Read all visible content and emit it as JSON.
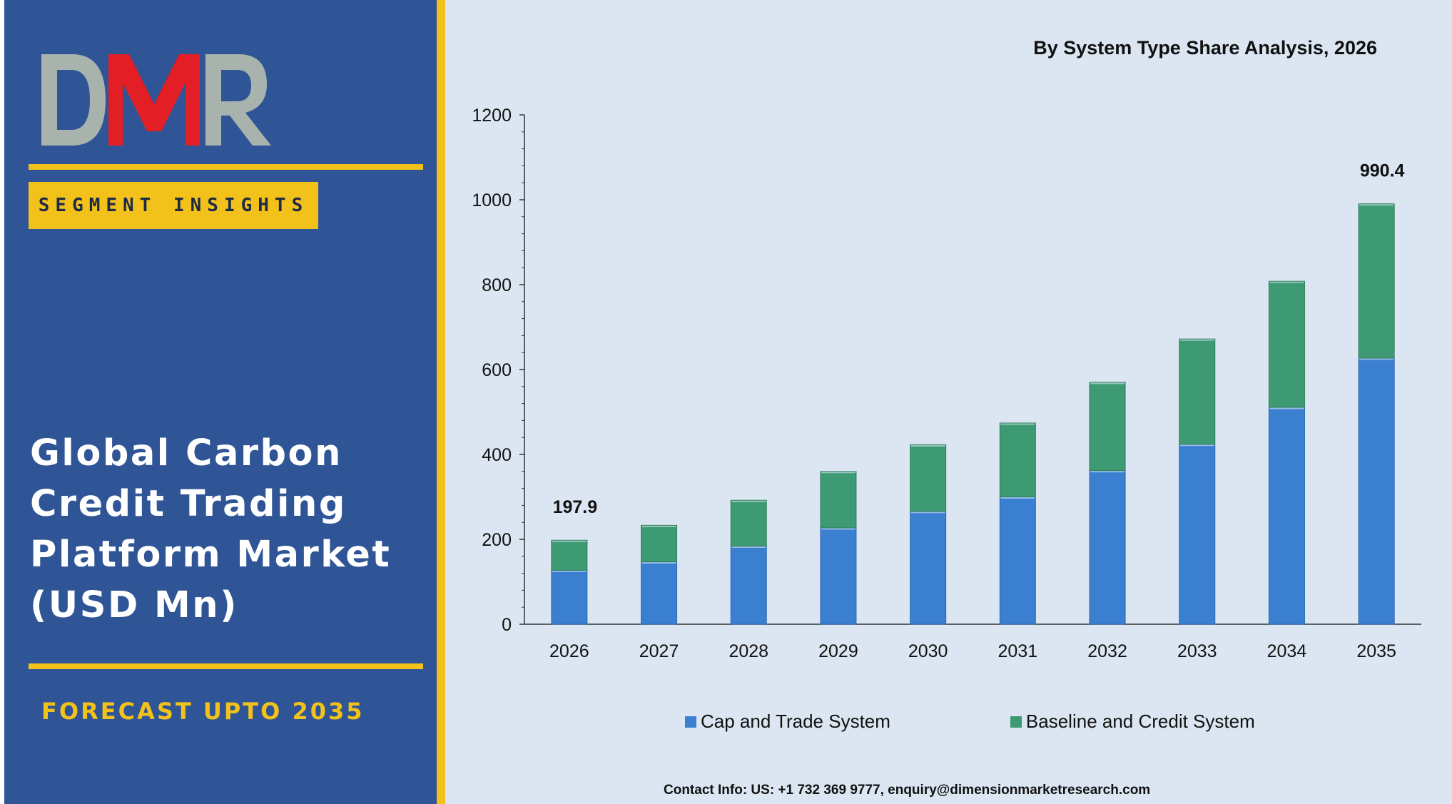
{
  "left_panel": {
    "logo_text": "DMR",
    "segment_label": "SEGMENT INSIGHTS",
    "market_title_lines": [
      "Global Carbon",
      "Credit Trading",
      "Platform Market",
      "(USD Mn)"
    ],
    "forecast_label": "FORECAST UPTO 2035"
  },
  "colors": {
    "panel_blue": "#2f5597",
    "accent_gold": "#f2c21b",
    "chart_background": "#dbe6f2",
    "logo_grey": "#a7b3ac",
    "logo_red": "#e31e24"
  },
  "contact_info": "Contact Info: US: +1 732 369 9777, enquiry@dimensionmarketresearch.com",
  "chart_data": {
    "type": "bar",
    "stacked": true,
    "title": "By System Type Share Analysis, 2026",
    "categories": [
      "2026",
      "2027",
      "2028",
      "2029",
      "2030",
      "2031",
      "2032",
      "2033",
      "2034",
      "2035"
    ],
    "series": [
      {
        "name": "Cap and Trade System",
        "color": "#3a7fd0",
        "values": [
          127,
          147,
          184,
          227,
          266,
          300,
          362,
          424,
          511,
          627
        ]
      },
      {
        "name": "Baseline and Credit System",
        "color": "#3e9a72",
        "values": [
          70.9,
          86,
          108,
          133,
          157,
          174,
          208,
          248,
          297,
          363.4
        ]
      }
    ],
    "data_labels": [
      {
        "category": "2026",
        "text": "197.9"
      },
      {
        "category": "2035",
        "text": "990.4"
      }
    ],
    "yticks": [
      0,
      200,
      400,
      600,
      800,
      1000,
      1200
    ],
    "ylim": [
      0,
      1200
    ],
    "legend_position": "bottom",
    "grid": false
  }
}
